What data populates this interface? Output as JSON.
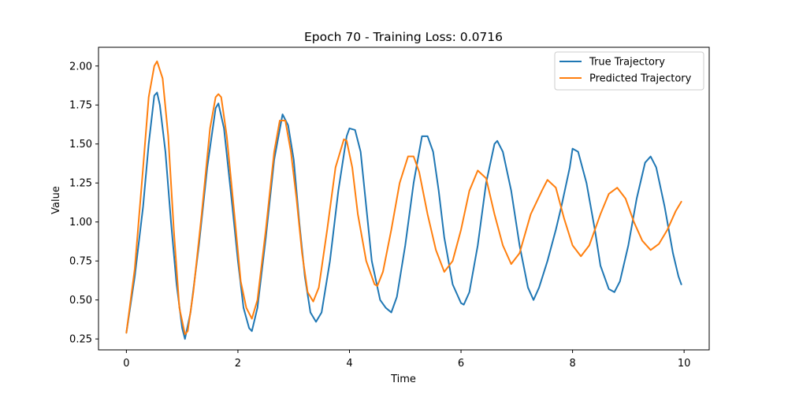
{
  "chart_data": {
    "type": "line",
    "title": "Epoch 70 - Training Loss: 0.0716",
    "xlabel": "Time",
    "ylabel": "Value",
    "xlim": [
      -0.5,
      10.45
    ],
    "ylim": [
      0.18,
      2.12
    ],
    "xticks": [
      0,
      2,
      4,
      6,
      8,
      10
    ],
    "yticks": [
      0.25,
      0.5,
      0.75,
      1.0,
      1.25,
      1.5,
      1.75,
      2.0
    ],
    "ytick_labels": [
      "0.25",
      "0.50",
      "0.75",
      "1.00",
      "1.25",
      "1.50",
      "1.75",
      "2.00"
    ],
    "legend_position": "top-right",
    "grid": false,
    "series": [
      {
        "name": "True Trajectory",
        "color": "#1f77b4",
        "points": [
          [
            0.0,
            0.29
          ],
          [
            0.15,
            0.65
          ],
          [
            0.3,
            1.1
          ],
          [
            0.4,
            1.5
          ],
          [
            0.5,
            1.81
          ],
          [
            0.55,
            1.83
          ],
          [
            0.6,
            1.75
          ],
          [
            0.7,
            1.45
          ],
          [
            0.8,
            1.0
          ],
          [
            0.9,
            0.6
          ],
          [
            1.0,
            0.32
          ],
          [
            1.05,
            0.25
          ],
          [
            1.15,
            0.42
          ],
          [
            1.3,
            0.85
          ],
          [
            1.45,
            1.35
          ],
          [
            1.6,
            1.73
          ],
          [
            1.65,
            1.76
          ],
          [
            1.75,
            1.6
          ],
          [
            1.9,
            1.1
          ],
          [
            2.0,
            0.75
          ],
          [
            2.1,
            0.45
          ],
          [
            2.2,
            0.32
          ],
          [
            2.25,
            0.3
          ],
          [
            2.35,
            0.45
          ],
          [
            2.5,
            0.9
          ],
          [
            2.65,
            1.4
          ],
          [
            2.8,
            1.69
          ],
          [
            2.9,
            1.62
          ],
          [
            3.0,
            1.4
          ],
          [
            3.1,
            1.0
          ],
          [
            3.2,
            0.65
          ],
          [
            3.3,
            0.42
          ],
          [
            3.4,
            0.36
          ],
          [
            3.5,
            0.42
          ],
          [
            3.65,
            0.75
          ],
          [
            3.8,
            1.2
          ],
          [
            3.95,
            1.55
          ],
          [
            4.0,
            1.6
          ],
          [
            4.1,
            1.59
          ],
          [
            4.2,
            1.45
          ],
          [
            4.3,
            1.1
          ],
          [
            4.4,
            0.75
          ],
          [
            4.55,
            0.5
          ],
          [
            4.65,
            0.45
          ],
          [
            4.75,
            0.42
          ],
          [
            4.85,
            0.52
          ],
          [
            5.0,
            0.85
          ],
          [
            5.15,
            1.25
          ],
          [
            5.3,
            1.55
          ],
          [
            5.4,
            1.55
          ],
          [
            5.5,
            1.45
          ],
          [
            5.6,
            1.2
          ],
          [
            5.7,
            0.9
          ],
          [
            5.85,
            0.6
          ],
          [
            6.0,
            0.48
          ],
          [
            6.05,
            0.47
          ],
          [
            6.15,
            0.55
          ],
          [
            6.3,
            0.85
          ],
          [
            6.45,
            1.25
          ],
          [
            6.6,
            1.5
          ],
          [
            6.65,
            1.52
          ],
          [
            6.75,
            1.45
          ],
          [
            6.9,
            1.2
          ],
          [
            7.05,
            0.85
          ],
          [
            7.2,
            0.58
          ],
          [
            7.3,
            0.5
          ],
          [
            7.4,
            0.58
          ],
          [
            7.55,
            0.75
          ],
          [
            7.7,
            0.95
          ],
          [
            7.8,
            1.1
          ],
          [
            7.95,
            1.35
          ],
          [
            8.0,
            1.47
          ],
          [
            8.1,
            1.45
          ],
          [
            8.25,
            1.25
          ],
          [
            8.4,
            0.95
          ],
          [
            8.5,
            0.72
          ],
          [
            8.65,
            0.57
          ],
          [
            8.75,
            0.55
          ],
          [
            8.85,
            0.62
          ],
          [
            9.0,
            0.85
          ],
          [
            9.15,
            1.15
          ],
          [
            9.3,
            1.38
          ],
          [
            9.4,
            1.42
          ],
          [
            9.5,
            1.35
          ],
          [
            9.65,
            1.1
          ],
          [
            9.8,
            0.8
          ],
          [
            9.9,
            0.65
          ],
          [
            9.95,
            0.6
          ]
        ]
      },
      {
        "name": "Predicted Trajectory",
        "color": "#ff7f0e",
        "points": [
          [
            0.0,
            0.29
          ],
          [
            0.15,
            0.7
          ],
          [
            0.3,
            1.35
          ],
          [
            0.4,
            1.8
          ],
          [
            0.5,
            2.0
          ],
          [
            0.55,
            2.03
          ],
          [
            0.65,
            1.92
          ],
          [
            0.75,
            1.55
          ],
          [
            0.85,
            0.95
          ],
          [
            0.95,
            0.45
          ],
          [
            1.05,
            0.28
          ],
          [
            1.1,
            0.3
          ],
          [
            1.2,
            0.55
          ],
          [
            1.35,
            1.05
          ],
          [
            1.5,
            1.6
          ],
          [
            1.6,
            1.8
          ],
          [
            1.65,
            1.82
          ],
          [
            1.7,
            1.8
          ],
          [
            1.8,
            1.55
          ],
          [
            1.95,
            1.0
          ],
          [
            2.05,
            0.62
          ],
          [
            2.15,
            0.45
          ],
          [
            2.25,
            0.38
          ],
          [
            2.35,
            0.5
          ],
          [
            2.5,
            0.95
          ],
          [
            2.65,
            1.45
          ],
          [
            2.75,
            1.65
          ],
          [
            2.85,
            1.65
          ],
          [
            2.95,
            1.45
          ],
          [
            3.05,
            1.15
          ],
          [
            3.15,
            0.8
          ],
          [
            3.25,
            0.55
          ],
          [
            3.35,
            0.49
          ],
          [
            3.45,
            0.58
          ],
          [
            3.6,
            0.95
          ],
          [
            3.75,
            1.35
          ],
          [
            3.9,
            1.53
          ],
          [
            3.95,
            1.52
          ],
          [
            4.05,
            1.35
          ],
          [
            4.15,
            1.05
          ],
          [
            4.3,
            0.75
          ],
          [
            4.45,
            0.6
          ],
          [
            4.5,
            0.59
          ],
          [
            4.6,
            0.68
          ],
          [
            4.75,
            0.95
          ],
          [
            4.9,
            1.25
          ],
          [
            5.05,
            1.42
          ],
          [
            5.15,
            1.42
          ],
          [
            5.25,
            1.32
          ],
          [
            5.4,
            1.05
          ],
          [
            5.55,
            0.82
          ],
          [
            5.7,
            0.68
          ],
          [
            5.85,
            0.75
          ],
          [
            6.0,
            0.95
          ],
          [
            6.15,
            1.2
          ],
          [
            6.3,
            1.33
          ],
          [
            6.45,
            1.28
          ],
          [
            6.6,
            1.05
          ],
          [
            6.75,
            0.85
          ],
          [
            6.9,
            0.73
          ],
          [
            7.05,
            0.8
          ],
          [
            7.25,
            1.05
          ],
          [
            7.45,
            1.2
          ],
          [
            7.55,
            1.27
          ],
          [
            7.7,
            1.22
          ],
          [
            7.85,
            1.02
          ],
          [
            8.0,
            0.85
          ],
          [
            8.15,
            0.78
          ],
          [
            8.3,
            0.85
          ],
          [
            8.5,
            1.05
          ],
          [
            8.65,
            1.18
          ],
          [
            8.8,
            1.22
          ],
          [
            8.95,
            1.15
          ],
          [
            9.1,
            1.0
          ],
          [
            9.25,
            0.88
          ],
          [
            9.4,
            0.82
          ],
          [
            9.55,
            0.86
          ],
          [
            9.7,
            0.95
          ],
          [
            9.85,
            1.07
          ],
          [
            9.95,
            1.13
          ]
        ]
      }
    ]
  }
}
